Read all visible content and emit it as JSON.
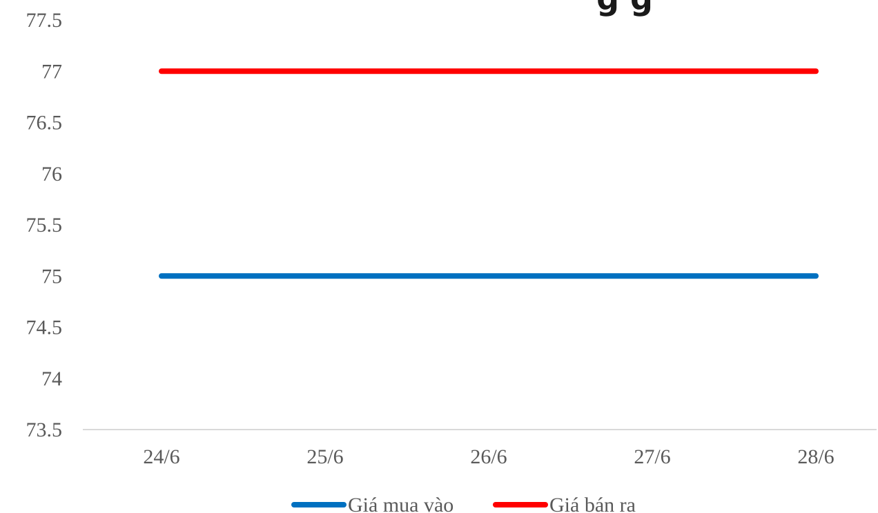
{
  "chart_data": {
    "type": "line",
    "title_fragment": "g g",
    "categories": [
      "24/6",
      "25/6",
      "26/6",
      "27/6",
      "28/6"
    ],
    "series": [
      {
        "name": "Giá mua vào",
        "color": "#0070c0",
        "values": [
          75,
          75,
          75,
          75,
          75
        ]
      },
      {
        "name": "Giá bán ra",
        "color": "#ff0000",
        "values": [
          77,
          77,
          77,
          77,
          77
        ]
      }
    ],
    "ylim": [
      73.5,
      77.5
    ],
    "yticks": [
      "73.5",
      "74",
      "74.5",
      "75",
      "75.5",
      "76",
      "76.5",
      "77",
      "77.5"
    ],
    "grid": false,
    "legend_position": "bottom",
    "axis_color": "#d9d9d9"
  }
}
